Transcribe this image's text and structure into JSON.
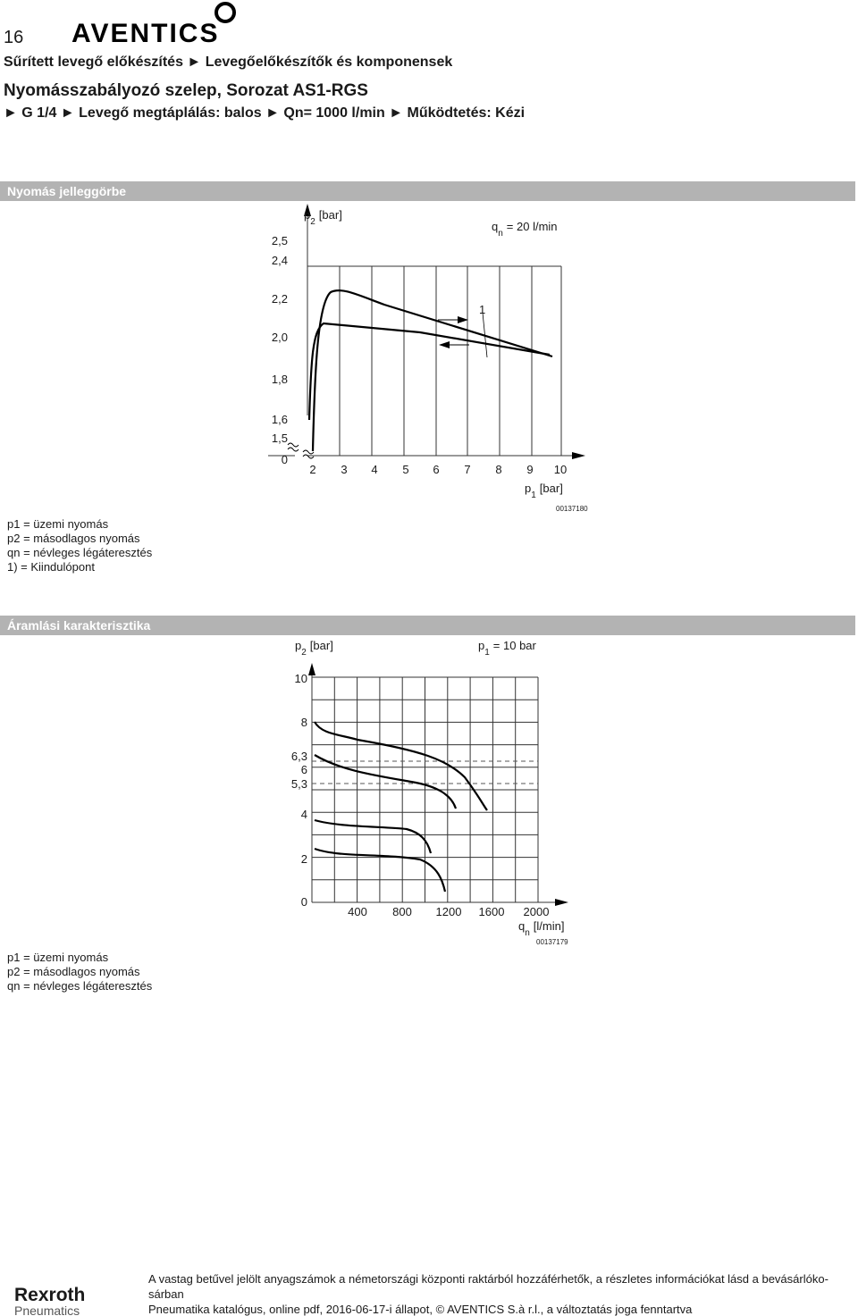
{
  "header": {
    "page_number": "16",
    "brand": "AVENTICS",
    "breadcrumb": "Sűrített levegő előkészítés ► Levegőelőkészítők és komponensek",
    "title": "Nyomásszabályozó szelep, Sorozat AS1-RGS",
    "subtitle": "► G 1/4 ► Levegő megtáplálás: balos ► Qn= 1000 l/min ► Működtetés: Kézi"
  },
  "section1": {
    "heading": "Nyomás jelleggörbe",
    "y_label": {
      "symbol": "p",
      "sub": "2",
      "unit": "[bar]"
    },
    "y_ticks": [
      "2,5",
      "2,4",
      "2,2",
      "2,0",
      "1,8",
      "1,6",
      "1,5",
      "0"
    ],
    "x_ticks": [
      "2",
      "3",
      "4",
      "5",
      "6",
      "7",
      "8",
      "9",
      "10"
    ],
    "x_label": {
      "symbol": "p",
      "sub": "1",
      "unit": "[bar]"
    },
    "flow_note": {
      "symbol": "q",
      "sub": "n",
      "text": "= 20 l/min"
    },
    "marker": "1",
    "code": "00137180",
    "legend": [
      "p1 = üzemi nyomás",
      "p2 = másodlagos nyomás",
      "qn = névleges légáteresztés",
      "1) = Kiindulópont"
    ]
  },
  "section2": {
    "heading": "Áramlási karakterisztika",
    "y_label": {
      "symbol": "p",
      "sub": "2",
      "unit": "[bar]"
    },
    "pressure_note": {
      "symbol": "p",
      "sub": "1",
      "text": "= 10 bar"
    },
    "y_ticks": [
      "10",
      "8",
      "6,3",
      "6",
      "5,3",
      "4",
      "2",
      "0"
    ],
    "x_ticks": [
      "400",
      "800",
      "1200",
      "1600",
      "2000"
    ],
    "x_label": {
      "symbol": "q",
      "sub": "n",
      "unit": "[l/min]"
    },
    "code": "00137179",
    "legend": [
      "p1 = üzemi nyomás",
      "p2 = másodlagos nyomás",
      "qn = névleges légáteresztés"
    ]
  },
  "footer": {
    "brand": "Rexroth",
    "brand_sub": "Pneumatics",
    "note_line1": "A vastag betűvel jelölt anyagszámok a németországi központi raktárból hozzáférhetők, a részletes információkat lásd a bevásárlókо-",
    "note_line2": "sárban",
    "catalog": "Pneumatika katalógus, online pdf, 2016-06-17-i állapot, © AVENTICS S.à r.l., a változtatás joga fenntartva"
  }
}
